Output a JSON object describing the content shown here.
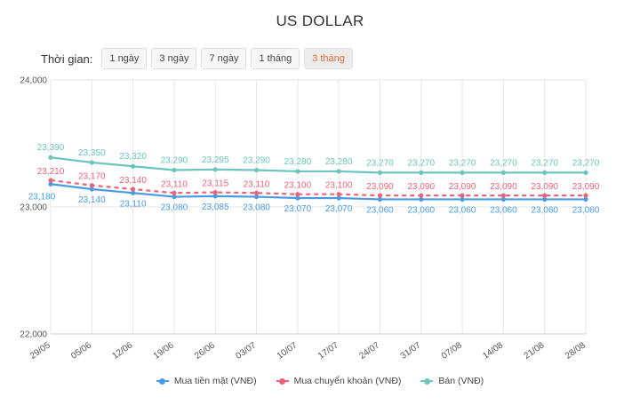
{
  "title": "US DOLLAR",
  "time_filter": {
    "label": "Thời gian:",
    "options": [
      "1 ngày",
      "3 ngày",
      "7 ngày",
      "1 tháng",
      "3 tháng"
    ],
    "selected": "3 tháng"
  },
  "colors": {
    "buy_cash": "#4a9be0",
    "buy_transfer": "#e9647a",
    "sell": "#6cc4bb",
    "active_filter": "#e06a3a",
    "grid": "#e6e6e6",
    "axis_text": "#555555"
  },
  "chart_data": {
    "type": "line",
    "x": [
      "29/05",
      "05/06",
      "12/06",
      "19/06",
      "26/06",
      "03/07",
      "10/07",
      "17/07",
      "24/07",
      "31/07",
      "07/08",
      "14/08",
      "21/08",
      "28/08"
    ],
    "yticks": [
      "22,000",
      "23,000",
      "24,000"
    ],
    "ylim": [
      22000,
      24000
    ],
    "series": [
      {
        "name": "Mua tiền mặt (VNĐ)",
        "values": [
          23180,
          23140,
          23110,
          23080,
          23085,
          23080,
          23070,
          23070,
          23060,
          23060,
          23060,
          23060,
          23060,
          23060
        ],
        "labels": [
          "23,180",
          "23,140",
          "23,110",
          "23,080",
          "23,085",
          "23,080",
          "23,070",
          "23,070",
          "23,060",
          "23,060",
          "23,060",
          "23,060",
          "23,060",
          "23,060"
        ]
      },
      {
        "name": "Mua chuyển khoản (VNĐ)",
        "values": [
          23210,
          23170,
          23140,
          23110,
          23115,
          23110,
          23100,
          23100,
          23090,
          23090,
          23090,
          23090,
          23090,
          23090
        ],
        "labels": [
          "23,210",
          "23,170",
          "23,140",
          "23,110",
          "23,115",
          "23,110",
          "23,100",
          "23,100",
          "23,090",
          "23,090",
          "23,090",
          "23,090",
          "23,090",
          "23,090"
        ]
      },
      {
        "name": "Bán (VNĐ)",
        "values": [
          23390,
          23350,
          23320,
          23290,
          23295,
          23290,
          23280,
          23280,
          23270,
          23270,
          23270,
          23270,
          23270,
          23270
        ],
        "labels": [
          "23,390",
          "23,350",
          "23,320",
          "23,290",
          "23,295",
          "23,290",
          "23,280",
          "23,280",
          "23,270",
          "23,270",
          "23,270",
          "23,270",
          "23,270",
          "23,270"
        ]
      }
    ],
    "legend_position": "bottom",
    "grid": true
  }
}
